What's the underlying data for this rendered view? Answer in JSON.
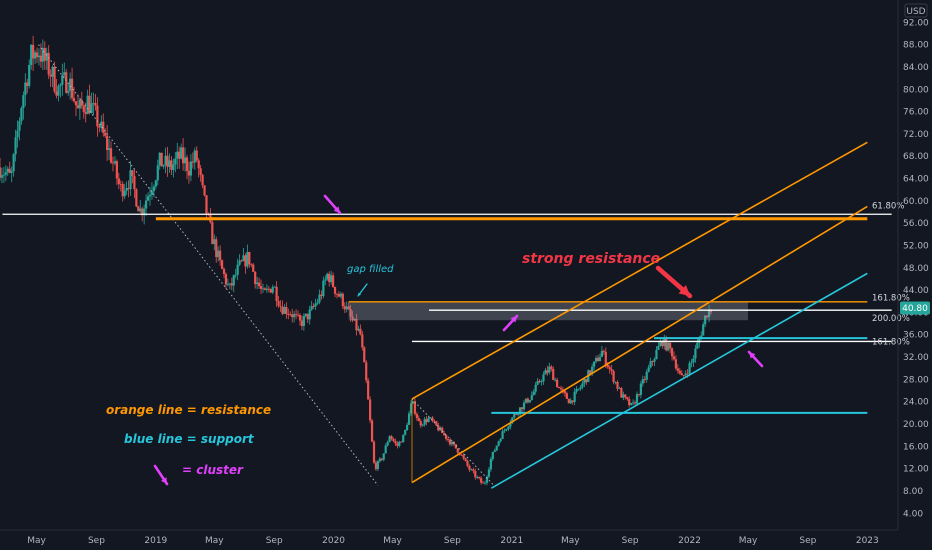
{
  "chart_data": {
    "type": "candlestick",
    "currency_label": "USD",
    "last_price_label": "40.80",
    "y_ticks": [
      4,
      8,
      12,
      16,
      20,
      24,
      28,
      32,
      36,
      40,
      44,
      48,
      52,
      56,
      60,
      64,
      68,
      72,
      76,
      80,
      84,
      88,
      92
    ],
    "y_tick_labels": [
      "4.00",
      "8.00",
      "12.00",
      "16.00",
      "20.00",
      "24.00",
      "28.00",
      "32.00",
      "36.00",
      "40.00",
      "44.00",
      "48.00",
      "52.00",
      "56.00",
      "60.00",
      "64.00",
      "68.00",
      "72.00",
      "76.00",
      "80.00",
      "84.00",
      "88.00",
      "92.00"
    ],
    "ylim": [
      1,
      96
    ],
    "x_ticks": [
      "May",
      "Sep",
      "2019",
      "May",
      "Sep",
      "2020",
      "May",
      "Sep",
      "2021",
      "May",
      "Sep",
      "2022",
      "May",
      "Sep",
      "2023"
    ],
    "x_tick_dates": [
      "2018-05",
      "2018-09",
      "2019-01",
      "2019-05",
      "2019-09",
      "2020-01",
      "2020-05",
      "2020-09",
      "2021-01",
      "2021-05",
      "2021-09",
      "2022-01",
      "2022-05",
      "2022-09",
      "2023-01"
    ],
    "xlim": [
      "2018-02-15",
      "2023-03-05"
    ],
    "price_path": [
      [
        "2018-02-15",
        66
      ],
      [
        "2018-03-10",
        64
      ],
      [
        "2018-04-01",
        78
      ],
      [
        "2018-04-20",
        86
      ],
      [
        "2018-05-05",
        87
      ],
      [
        "2018-05-25",
        84
      ],
      [
        "2018-06-15",
        80
      ],
      [
        "2018-07-05",
        82
      ],
      [
        "2018-07-25",
        76
      ],
      [
        "2018-08-15",
        78
      ],
      [
        "2018-09-05",
        74
      ],
      [
        "2018-10-01",
        68
      ],
      [
        "2018-10-20",
        62
      ],
      [
        "2018-11-10",
        64
      ],
      [
        "2018-12-01",
        58
      ],
      [
        "2018-12-20",
        62
      ],
      [
        "2019-01-10",
        67
      ],
      [
        "2019-02-01",
        66
      ],
      [
        "2019-02-20",
        68
      ],
      [
        "2019-03-10",
        66
      ],
      [
        "2019-03-25",
        68
      ],
      [
        "2019-04-10",
        60
      ],
      [
        "2019-04-25",
        54
      ],
      [
        "2019-05-15",
        48
      ],
      [
        "2019-06-01",
        44
      ],
      [
        "2019-06-20",
        48
      ],
      [
        "2019-07-10",
        50
      ],
      [
        "2019-07-25",
        46
      ],
      [
        "2019-08-10",
        43
      ],
      [
        "2019-08-30",
        45
      ],
      [
        "2019-09-15",
        41
      ],
      [
        "2019-10-05",
        40
      ],
      [
        "2019-10-25",
        38
      ],
      [
        "2019-11-15",
        40
      ],
      [
        "2019-12-05",
        43
      ],
      [
        "2019-12-20",
        47
      ],
      [
        "2020-01-05",
        44
      ],
      [
        "2020-01-20",
        42
      ],
      [
        "2020-02-05",
        39
      ],
      [
        "2020-02-25",
        36
      ],
      [
        "2020-03-10",
        26
      ],
      [
        "2020-03-25",
        12
      ],
      [
        "2020-04-10",
        14
      ],
      [
        "2020-04-25",
        18
      ],
      [
        "2020-05-10",
        16
      ],
      [
        "2020-05-25",
        18
      ],
      [
        "2020-06-10",
        24
      ],
      [
        "2020-06-25",
        20
      ],
      [
        "2020-07-15",
        21
      ],
      [
        "2020-08-05",
        19
      ],
      [
        "2020-08-25",
        17
      ],
      [
        "2020-09-15",
        15
      ],
      [
        "2020-10-05",
        12
      ],
      [
        "2020-10-25",
        10
      ],
      [
        "2020-11-05",
        9
      ],
      [
        "2020-11-20",
        14
      ],
      [
        "2020-12-10",
        18
      ],
      [
        "2021-01-01",
        21
      ],
      [
        "2021-01-20",
        23
      ],
      [
        "2021-02-10",
        25
      ],
      [
        "2021-03-01",
        28
      ],
      [
        "2021-03-20",
        30
      ],
      [
        "2021-04-10",
        26
      ],
      [
        "2021-05-01",
        24
      ],
      [
        "2021-05-25",
        27
      ],
      [
        "2021-06-15",
        30
      ],
      [
        "2021-07-05",
        33
      ],
      [
        "2021-07-25",
        29
      ],
      [
        "2021-08-15",
        25
      ],
      [
        "2021-09-05",
        23
      ],
      [
        "2021-09-25",
        27
      ],
      [
        "2021-10-15",
        31
      ],
      [
        "2021-11-05",
        35
      ],
      [
        "2021-11-25",
        33
      ],
      [
        "2021-12-15",
        28
      ],
      [
        "2022-01-05",
        31
      ],
      [
        "2022-01-20",
        35
      ],
      [
        "2022-02-05",
        40
      ],
      [
        "2022-02-15",
        40.8
      ]
    ],
    "horizontal_levels": [
      {
        "name": "white-top",
        "value": 57.6,
        "from": "2018-02-20",
        "to": "2023-02-20",
        "color": "#ffffff",
        "label": "61.80%"
      },
      {
        "name": "orange-top",
        "value": 56.8,
        "from": "2019-01-01",
        "to": "2023-01-01",
        "color": "#ff9800",
        "width": 3
      },
      {
        "name": "orange-mid",
        "value": 41.9,
        "from": "2020-02-01",
        "to": "2023-01-01",
        "color": "#ff9800",
        "label": "161.80%"
      },
      {
        "name": "white-mid",
        "value": 40.4,
        "from": "2020-07-15",
        "to": "2023-02-20",
        "color": "#ffffff",
        "label": "200.00%"
      },
      {
        "name": "white-low",
        "value": 34.8,
        "from": "2020-06-10",
        "to": "2023-02-20",
        "color": "#ffffff",
        "label": "161.80%"
      },
      {
        "name": "blue-short",
        "value": 35.4,
        "from": "2021-10-20",
        "to": "2023-01-01",
        "color": "#26c6da",
        "width": 2
      },
      {
        "name": "blue-low",
        "value": 22.0,
        "from": "2020-11-20",
        "to": "2023-01-01",
        "color": "#26c6da",
        "width": 2
      }
    ],
    "channel_lines": [
      {
        "name": "orange-upper",
        "from": [
          "2020-06-10",
          24.5
        ],
        "to": [
          "2023-01-01",
          70.5
        ],
        "color": "#ff9800"
      },
      {
        "name": "orange-lower",
        "from": [
          "2020-06-10",
          9.5
        ],
        "to": [
          "2023-01-01",
          59.0
        ],
        "color": "#ff9800"
      },
      {
        "name": "blue-support",
        "from": [
          "2020-11-20",
          8.5
        ],
        "to": [
          "2023-01-01",
          47.0
        ],
        "color": "#26c6da"
      }
    ],
    "dotted_lines": [
      {
        "from": [
          "2018-05-05",
          88
        ],
        "to": [
          "2020-04-01",
          9
        ]
      },
      {
        "from": [
          "2020-06-10",
          24.5
        ],
        "to": [
          "2020-11-25",
          9
        ]
      }
    ],
    "annotations": {
      "gap_filled": "gap filled",
      "strong_resistance": "strong resistance",
      "legend_orange": "orange line = resistance",
      "legend_blue": "blue line = support",
      "legend_cluster": "= cluster"
    },
    "colors": {
      "up": "#26a69a",
      "down": "#ef5350",
      "background": "#131722",
      "orange": "#ff9800",
      "blue": "#26c6da",
      "magenta": "#e040fb",
      "red_arrow": "#f23645",
      "price_tag": "#26a69a"
    }
  }
}
